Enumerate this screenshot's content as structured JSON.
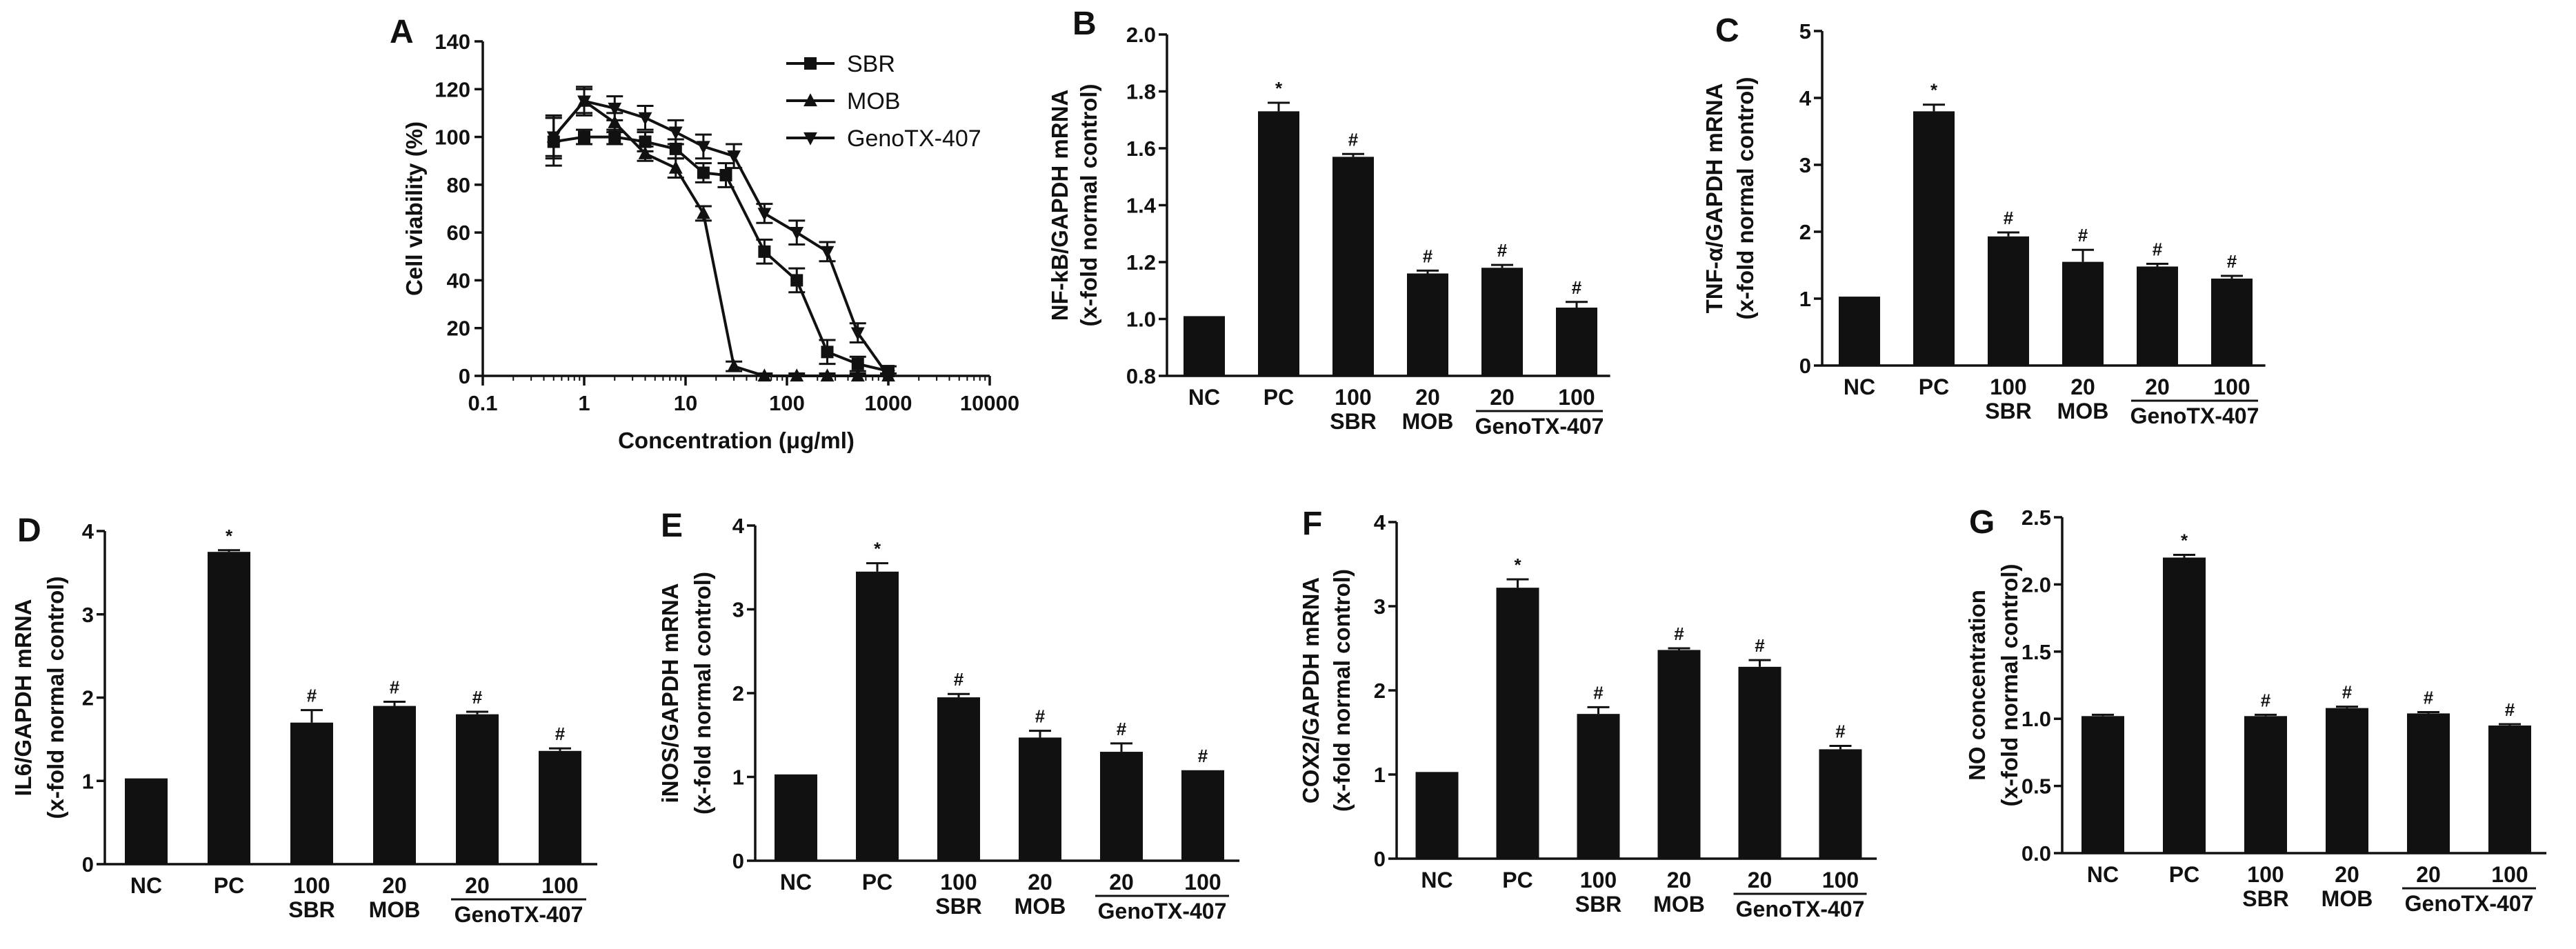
{
  "figure": {
    "group_label": "GenoTX-407",
    "chart_data": [
      {
        "panel": "A",
        "type": "line",
        "xscale": "log",
        "xlim": [
          0.1,
          10000
        ],
        "ylim": [
          0,
          140
        ],
        "xticks": [
          0.1,
          1,
          10,
          100,
          1000,
          10000
        ],
        "xticklabels": [
          "0.1",
          "1",
          "10",
          "100",
          "1000",
          "10000"
        ],
        "yticks": [
          0,
          20,
          40,
          60,
          80,
          100,
          120,
          140
        ],
        "yticklabels": [
          "0",
          "20",
          "40",
          "60",
          "80",
          "100",
          "120",
          "140"
        ],
        "xlabel": "Concentration (μg/ml)",
        "ylabel": "Cell viability (%)",
        "legend_position": "top-right",
        "series": [
          {
            "name": "SBR",
            "marker": "square",
            "x": [
              0.5,
              1,
              2,
              4,
              8,
              15,
              25,
              60,
              125,
              250,
              500,
              1000
            ],
            "y": [
              98,
              100,
              100,
              98,
              95,
              85,
              84,
              52,
              40,
              10,
              5,
              2
            ],
            "err": [
              10,
              3,
              3,
              4,
              4,
              4,
              5,
              5,
              5,
              5,
              3,
              2
            ]
          },
          {
            "name": "MOB",
            "marker": "triangle-up",
            "x": [
              0.5,
              1,
              2,
              4,
              8,
              15,
              30,
              60,
              125,
              250,
              500,
              1000
            ],
            "y": [
              100,
              115,
              106,
              93,
              87,
              68,
              4,
              0,
              0,
              0,
              0,
              0
            ],
            "err": [
              8,
              5,
              4,
              3,
              4,
              3,
              2,
              1,
              1,
              1,
              1,
              1
            ]
          },
          {
            "name": "GenoTX-407",
            "marker": "triangle-down",
            "x": [
              0.5,
              1,
              2,
              4,
              8,
              15,
              30,
              60,
              125,
              250,
              500,
              1000
            ],
            "y": [
              100,
              115,
              112,
              108,
              102,
              96,
              92,
              68,
              60,
              52,
              18,
              0
            ],
            "err": [
              9,
              6,
              5,
              5,
              5,
              5,
              5,
              4,
              5,
              4,
              4,
              1
            ]
          }
        ]
      },
      {
        "panel": "B",
        "type": "bar",
        "ylabel": [
          "NF-kB/GAPDH mRNA",
          "(x-fold normal control)"
        ],
        "ylim": [
          0.8,
          2.0
        ],
        "yticks": [
          0.8,
          1.0,
          1.2,
          1.4,
          1.6,
          1.8,
          2.0
        ],
        "yticklabels": [
          "0.8",
          "1.0",
          "1.2",
          "1.4",
          "1.6",
          "1.8",
          "2.0"
        ],
        "categories": [
          "NC",
          "PC",
          "100 SBR",
          "20 MOB",
          "20",
          "100"
        ],
        "category_lines": [
          [
            "NC"
          ],
          [
            "PC"
          ],
          [
            "100",
            "SBR"
          ],
          [
            "20",
            "MOB"
          ],
          [
            "20"
          ],
          [
            "100"
          ]
        ],
        "values": [
          1.01,
          1.73,
          1.57,
          1.16,
          1.18,
          1.04
        ],
        "err": [
          0.0,
          0.03,
          0.01,
          0.01,
          0.01,
          0.02
        ],
        "marks": [
          "",
          "*",
          "#",
          "#",
          "#",
          "#"
        ]
      },
      {
        "panel": "C",
        "type": "bar",
        "ylabel": [
          "TNF-α/GAPDH mRNA",
          "(x-fold normal control)"
        ],
        "ylim": [
          0,
          5
        ],
        "yticks": [
          0,
          1,
          2,
          3,
          4,
          5
        ],
        "yticklabels": [
          "0",
          "1",
          "2",
          "3",
          "4",
          "5"
        ],
        "categories": [
          "NC",
          "PC",
          "100 SBR",
          "20 MOB",
          "20",
          "100"
        ],
        "category_lines": [
          [
            "NC"
          ],
          [
            "PC"
          ],
          [
            "100",
            "SBR"
          ],
          [
            "20",
            "MOB"
          ],
          [
            "20"
          ],
          [
            "100"
          ]
        ],
        "values": [
          1.03,
          3.8,
          1.93,
          1.55,
          1.48,
          1.3
        ],
        "err": [
          0.0,
          0.1,
          0.06,
          0.18,
          0.04,
          0.04
        ],
        "marks": [
          "",
          "*",
          "#",
          "#",
          "#",
          "#"
        ]
      },
      {
        "panel": "D",
        "type": "bar",
        "ylabel": [
          "IL6/GAPDH mRNA",
          "(x-fold normal control)"
        ],
        "ylim": [
          0,
          4
        ],
        "yticks": [
          0,
          1,
          2,
          3,
          4
        ],
        "yticklabels": [
          "0",
          "1",
          "2",
          "3",
          "4"
        ],
        "categories": [
          "NC",
          "PC",
          "100 SBR",
          "20 MOB",
          "20",
          "100"
        ],
        "category_lines": [
          [
            "NC"
          ],
          [
            "PC"
          ],
          [
            "100",
            "SBR"
          ],
          [
            "20",
            "MOB"
          ],
          [
            "20"
          ],
          [
            "100"
          ]
        ],
        "values": [
          1.03,
          3.75,
          1.7,
          1.9,
          1.8,
          1.36
        ],
        "err": [
          0.0,
          0.02,
          0.15,
          0.05,
          0.03,
          0.03
        ],
        "marks": [
          "",
          "*",
          "#",
          "#",
          "#",
          "#"
        ]
      },
      {
        "panel": "E",
        "type": "bar",
        "ylabel": [
          "iNOS/GAPDH mRNA",
          "(x-fold normal control)"
        ],
        "ylim": [
          0,
          4
        ],
        "yticks": [
          0,
          1,
          2,
          3,
          4
        ],
        "yticklabels": [
          "0",
          "1",
          "2",
          "3",
          "4"
        ],
        "categories": [
          "NC",
          "PC",
          "100 SBR",
          "20 MOB",
          "20",
          "100"
        ],
        "category_lines": [
          [
            "NC"
          ],
          [
            "PC"
          ],
          [
            "100",
            "SBR"
          ],
          [
            "20",
            "MOB"
          ],
          [
            "20"
          ],
          [
            "100"
          ]
        ],
        "values": [
          1.03,
          3.45,
          1.95,
          1.47,
          1.3,
          1.08
        ],
        "err": [
          0.0,
          0.1,
          0.04,
          0.08,
          0.1,
          0.0
        ],
        "marks": [
          "",
          "*",
          "#",
          "#",
          "#",
          "#"
        ]
      },
      {
        "panel": "F",
        "type": "bar",
        "ylabel": [
          "COX2/GAPDH mRNA",
          "(x-fold normal control)"
        ],
        "ylim": [
          0,
          4
        ],
        "yticks": [
          0,
          1,
          2,
          3,
          4
        ],
        "yticklabels": [
          "0",
          "1",
          "2",
          "3",
          "4"
        ],
        "categories": [
          "NC",
          "PC",
          "100 SBR",
          "20 MOB",
          "20",
          "100"
        ],
        "category_lines": [
          [
            "NC"
          ],
          [
            "PC"
          ],
          [
            "100",
            "SBR"
          ],
          [
            "20",
            "MOB"
          ],
          [
            "20"
          ],
          [
            "100"
          ]
        ],
        "values": [
          1.03,
          3.22,
          1.72,
          2.48,
          2.28,
          1.3
        ],
        "err": [
          0.0,
          0.1,
          0.08,
          0.02,
          0.08,
          0.04
        ],
        "marks": [
          "",
          "*",
          "#",
          "#",
          "#",
          "#"
        ]
      },
      {
        "panel": "G",
        "type": "bar",
        "ylabel": [
          "NO concentration",
          "(x-fold normal control)"
        ],
        "ylim": [
          0,
          2.5
        ],
        "yticks": [
          0.0,
          0.5,
          1.0,
          1.5,
          2.0,
          2.5
        ],
        "yticklabels": [
          "0.0",
          "0.5",
          "1.0",
          "1.5",
          "2.0",
          "2.5"
        ],
        "categories": [
          "NC",
          "PC",
          "100 SBR",
          "20 MOB",
          "20",
          "100"
        ],
        "category_lines": [
          [
            "NC"
          ],
          [
            "PC"
          ],
          [
            "100",
            "SBR"
          ],
          [
            "20",
            "MOB"
          ],
          [
            "20"
          ],
          [
            "100"
          ]
        ],
        "values": [
          1.02,
          2.2,
          1.02,
          1.08,
          1.04,
          0.95
        ],
        "err": [
          0.01,
          0.02,
          0.01,
          0.01,
          0.01,
          0.01
        ],
        "marks": [
          "",
          "*",
          "#",
          "#",
          "#",
          "#"
        ]
      }
    ]
  }
}
